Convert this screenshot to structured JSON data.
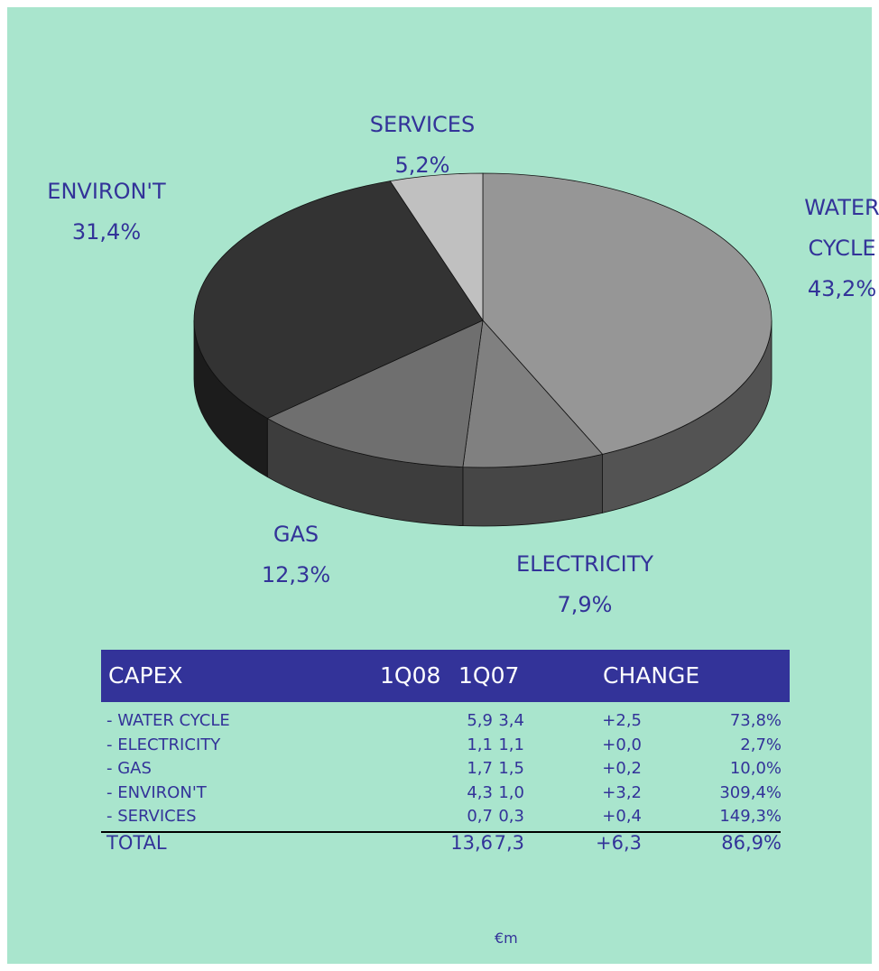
{
  "chart_data": {
    "type": "pie",
    "categories": [
      "WATER CYCLE",
      "ELECTRICITY",
      "GAS",
      "ENVIRON'T",
      "SERVICES"
    ],
    "values": [
      43.2,
      7.9,
      12.3,
      31.4,
      5.2
    ],
    "value_labels": [
      "43,2%",
      "7,9%",
      "12,3%",
      "31,4%",
      "5,2%"
    ],
    "colors": [
      "#969696",
      "#808080",
      "#6f6f6f",
      "#333333",
      "#c0c0c0"
    ]
  },
  "table": {
    "header": [
      "CAPEX",
      "1Q08",
      "1Q07",
      "CHANGE"
    ],
    "rows": [
      [
        "- WATER CYCLE",
        "5,9",
        "3,4",
        "+2,5",
        "73,8%"
      ],
      [
        "- ELECTRICITY",
        "1,1",
        "1,1",
        "+0,0",
        "2,7%"
      ],
      [
        "- GAS",
        "1,7",
        "1,5",
        "+0,2",
        "10,0%"
      ],
      [
        "- ENVIRON'T",
        "4,3",
        "1,0",
        "+3,2",
        "309,4%"
      ],
      [
        "- SERVICES",
        "0,7",
        "0,3",
        "+0,4",
        "149,3%"
      ]
    ],
    "total": [
      "TOTAL",
      "13,6",
      "7,3",
      "+6,3",
      "86,9%"
    ],
    "unit": "€m"
  }
}
